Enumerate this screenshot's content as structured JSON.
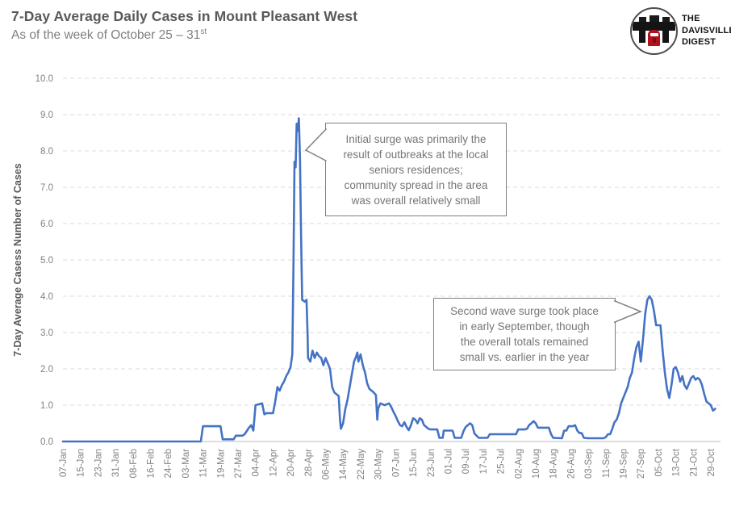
{
  "header": {
    "title": "7-Day Average Daily Cases in Mount Pleasant West",
    "subtitle_main": "As of the week of October 25 – 31",
    "subtitle_superscript": "st"
  },
  "logo": {
    "name": "The Davisville Digest logo",
    "line1": "THE",
    "line2": "DAVISVILLE",
    "line3": "DIGEST",
    "train_color": "#b3121a"
  },
  "annotations": [
    {
      "text": "Initial surge was primarily the\nresult of outbreaks at the local\nseniors residences;\ncommunity spread in the area\nwas overall relatively small"
    },
    {
      "text": "Second wave surge took place\nin early September, though\nthe overall totals remained\nsmall vs. earlier in the year"
    }
  ],
  "chart_data": {
    "type": "line",
    "title": "7-Day Average Daily Cases in Mount Pleasant West",
    "xlabel": "",
    "ylabel": "7-Day Average Casess  Number of Cases",
    "ylim": [
      0,
      10
    ],
    "ytick_labels": [
      "0.0",
      "1.0",
      "2.0",
      "3.0",
      "4.0",
      "5.0",
      "6.0",
      "7.0",
      "8.0",
      "9.0",
      "10.0"
    ],
    "xtick_labels": [
      "07-Jan",
      "15-Jan",
      "23-Jan",
      "31-Jan",
      "08-Feb",
      "16-Feb",
      "24-Feb",
      "03-Mar",
      "11-Mar",
      "19-Mar",
      "27-Mar",
      "04-Apr",
      "12-Apr",
      "20-Apr",
      "28-Apr",
      "06-May",
      "14-May",
      "22-May",
      "30-May",
      "07-Jun",
      "15-Jun",
      "23-Jun",
      "01-Jul",
      "09-Jul",
      "17-Jul",
      "25-Jul",
      "02-Aug",
      "10-Aug",
      "18-Aug",
      "26-Aug",
      "03-Sep",
      "11-Sep",
      "19-Sep",
      "27-Sep",
      "05-Oct",
      "13-Oct",
      "21-Oct",
      "29-Oct"
    ],
    "xtick_interval_days": 8,
    "total_days": 298,
    "grid": "horizontal-dashed",
    "legend": "none",
    "line_color": "#4472C4",
    "gridline_color": "#dbdbdb",
    "baseline_color": "#c9c9c9",
    "tick_label_color": "#828282",
    "axis_title_color": "#595959",
    "series": [
      {
        "name": "7-day average daily cases",
        "points": [
          [
            0,
            0
          ],
          [
            16,
            0
          ],
          [
            32,
            0
          ],
          [
            48,
            0
          ],
          [
            60,
            0
          ],
          [
            63,
            0
          ],
          [
            64,
            0.42
          ],
          [
            72,
            0.42
          ],
          [
            73,
            0.06
          ],
          [
            78,
            0.06
          ],
          [
            79,
            0.16
          ],
          [
            82,
            0.16
          ],
          [
            83,
            0.2
          ],
          [
            85,
            0.38
          ],
          [
            86,
            0.45
          ],
          [
            87,
            0.3
          ],
          [
            88,
            1.0
          ],
          [
            91,
            1.05
          ],
          [
            92,
            0.75
          ],
          [
            93,
            0.78
          ],
          [
            96,
            0.78
          ],
          [
            97,
            1.1
          ],
          [
            98,
            1.5
          ],
          [
            99,
            1.4
          ],
          [
            100,
            1.55
          ],
          [
            101,
            1.65
          ],
          [
            102,
            1.8
          ],
          [
            103,
            1.9
          ],
          [
            104,
            2.05
          ],
          [
            104.8,
            2.4
          ],
          [
            105.3,
            4.8
          ],
          [
            105.8,
            7.7
          ],
          [
            106.3,
            7.55
          ],
          [
            106.8,
            8.75
          ],
          [
            107.3,
            8.55
          ],
          [
            107.8,
            8.9
          ],
          [
            108.3,
            7.8
          ],
          [
            108.8,
            5.6
          ],
          [
            109.3,
            3.9
          ],
          [
            110.5,
            3.85
          ],
          [
            111.3,
            3.9
          ],
          [
            111.8,
            2.9
          ],
          [
            112,
            2.3
          ],
          [
            113,
            2.2
          ],
          [
            114,
            2.5
          ],
          [
            115,
            2.3
          ],
          [
            116,
            2.45
          ],
          [
            117,
            2.35
          ],
          [
            118,
            2.3
          ],
          [
            119,
            2.1
          ],
          [
            120,
            2.3
          ],
          [
            121,
            2.15
          ],
          [
            122,
            2.0
          ],
          [
            123,
            1.5
          ],
          [
            124,
            1.35
          ],
          [
            125,
            1.3
          ],
          [
            126,
            1.25
          ],
          [
            126.6,
            0.6
          ],
          [
            127,
            0.35
          ],
          [
            128,
            0.5
          ],
          [
            129,
            0.9
          ],
          [
            130,
            1.15
          ],
          [
            131,
            1.5
          ],
          [
            132,
            1.85
          ],
          [
            133,
            2.2
          ],
          [
            134,
            2.35
          ],
          [
            134.5,
            2.45
          ],
          [
            135,
            2.2
          ],
          [
            136,
            2.4
          ],
          [
            137,
            2.1
          ],
          [
            138,
            1.9
          ],
          [
            139,
            1.6
          ],
          [
            140,
            1.45
          ],
          [
            141,
            1.4
          ],
          [
            142,
            1.35
          ],
          [
            143,
            1.28
          ],
          [
            143.6,
            0.6
          ],
          [
            144,
            0.9
          ],
          [
            145,
            1.05
          ],
          [
            147,
            1.0
          ],
          [
            149,
            1.05
          ],
          [
            150,
            0.95
          ],
          [
            151,
            0.82
          ],
          [
            152,
            0.7
          ],
          [
            153,
            0.56
          ],
          [
            154,
            0.45
          ],
          [
            155,
            0.42
          ],
          [
            156,
            0.53
          ],
          [
            157,
            0.4
          ],
          [
            158,
            0.31
          ],
          [
            159,
            0.45
          ],
          [
            160,
            0.64
          ],
          [
            161,
            0.6
          ],
          [
            162,
            0.5
          ],
          [
            163,
            0.64
          ],
          [
            164,
            0.6
          ],
          [
            165,
            0.45
          ],
          [
            166,
            0.4
          ],
          [
            167,
            0.35
          ],
          [
            168,
            0.33
          ],
          [
            171,
            0.33
          ],
          [
            172,
            0.1
          ],
          [
            173.5,
            0.1
          ],
          [
            174,
            0.3
          ],
          [
            178,
            0.3
          ],
          [
            179,
            0.1
          ],
          [
            182,
            0.1
          ],
          [
            183,
            0.28
          ],
          [
            184,
            0.4
          ],
          [
            185,
            0.45
          ],
          [
            186,
            0.5
          ],
          [
            187,
            0.45
          ],
          [
            188,
            0.22
          ],
          [
            189,
            0.16
          ],
          [
            190,
            0.1
          ],
          [
            194,
            0.1
          ],
          [
            195,
            0.2
          ],
          [
            207,
            0.2
          ],
          [
            208,
            0.33
          ],
          [
            211,
            0.33
          ],
          [
            212,
            0.35
          ],
          [
            213,
            0.45
          ],
          [
            214,
            0.5
          ],
          [
            215,
            0.56
          ],
          [
            216,
            0.5
          ],
          [
            217,
            0.38
          ],
          [
            222,
            0.38
          ],
          [
            223,
            0.2
          ],
          [
            224,
            0.1
          ],
          [
            228,
            0.09
          ],
          [
            229,
            0.3
          ],
          [
            230,
            0.3
          ],
          [
            231,
            0.42
          ],
          [
            233,
            0.42
          ],
          [
            234,
            0.45
          ],
          [
            235,
            0.3
          ],
          [
            236,
            0.23
          ],
          [
            237,
            0.23
          ],
          [
            238,
            0.1
          ],
          [
            240,
            0.09
          ],
          [
            247,
            0.09
          ],
          [
            248,
            0.12
          ],
          [
            249,
            0.2
          ],
          [
            250,
            0.2
          ],
          [
            251,
            0.35
          ],
          [
            252,
            0.53
          ],
          [
            253,
            0.6
          ],
          [
            254,
            0.78
          ],
          [
            255,
            1.05
          ],
          [
            256,
            1.2
          ],
          [
            257,
            1.35
          ],
          [
            258,
            1.5
          ],
          [
            259,
            1.75
          ],
          [
            260,
            1.9
          ],
          [
            261,
            2.3
          ],
          [
            262,
            2.6
          ],
          [
            263,
            2.75
          ],
          [
            264,
            2.2
          ],
          [
            265,
            2.8
          ],
          [
            266,
            3.5
          ],
          [
            267,
            3.9
          ],
          [
            268,
            4.0
          ],
          [
            269,
            3.9
          ],
          [
            270,
            3.6
          ],
          [
            271,
            3.2
          ],
          [
            273,
            3.2
          ],
          [
            274,
            2.5
          ],
          [
            275,
            1.9
          ],
          [
            276,
            1.45
          ],
          [
            277,
            1.2
          ],
          [
            278,
            1.55
          ],
          [
            279,
            2.0
          ],
          [
            280,
            2.05
          ],
          [
            281,
            1.9
          ],
          [
            282,
            1.65
          ],
          [
            283,
            1.8
          ],
          [
            284,
            1.55
          ],
          [
            285,
            1.45
          ],
          [
            286,
            1.6
          ],
          [
            287,
            1.75
          ],
          [
            288,
            1.8
          ],
          [
            289,
            1.7
          ],
          [
            290,
            1.75
          ],
          [
            291,
            1.7
          ],
          [
            292,
            1.55
          ],
          [
            293,
            1.3
          ],
          [
            294,
            1.1
          ],
          [
            295,
            1.05
          ],
          [
            296,
            1.0
          ],
          [
            297,
            0.85
          ],
          [
            298,
            0.9
          ]
        ]
      }
    ]
  }
}
